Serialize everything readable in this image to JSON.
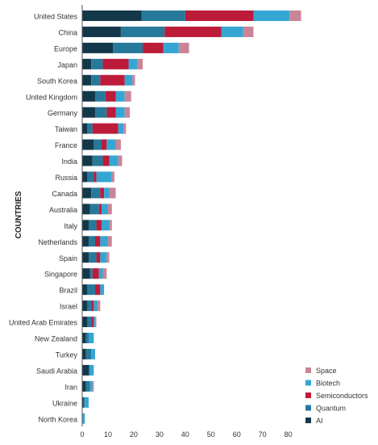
{
  "chart_data": {
    "type": "bar",
    "orientation": "horizontal",
    "stacked": true,
    "ylabel": "COUNTRIES",
    "xlabel": "",
    "xlim": [
      0,
      85
    ],
    "xticks": [
      0,
      10,
      20,
      30,
      40,
      50,
      60,
      70,
      80
    ],
    "grid": false,
    "legend_position": "bottom-right",
    "categories": [
      "United States",
      "China",
      "Europe",
      "Japan",
      "South Korea",
      "United Kingdom",
      "Germany",
      "Taiwan",
      "France",
      "India",
      "Russia",
      "Canada",
      "Australia",
      "Italy",
      "Netherlands",
      "Spain",
      "Singapore",
      "Brazil",
      "Israel",
      "United Arab Emirates",
      "New Zealand",
      "Turkey",
      "Saudi Arabia",
      "Iran",
      "Ukraine",
      "North Korea"
    ],
    "series": [
      {
        "name": "AI",
        "color": "#13384a",
        "values": [
          23,
          15,
          12,
          3.5,
          3.5,
          5,
          5,
          2,
          4.5,
          4,
          2,
          3.5,
          3,
          2.5,
          2.5,
          2.5,
          3,
          2,
          2,
          2,
          1.5,
          1.5,
          2.5,
          1.5,
          0.5,
          0
        ]
      },
      {
        "name": "Quantum",
        "color": "#27799a",
        "values": [
          17,
          17,
          11.5,
          4.5,
          3.5,
          4,
          4.5,
          2,
          3,
          4,
          2.5,
          3.5,
          3.5,
          3,
          2.5,
          3,
          1,
          3,
          1.5,
          1.5,
          1,
          2,
          0.5,
          1.5,
          0.5,
          0
        ]
      },
      {
        "name": "Semiconductors",
        "color": "#bd1b3a",
        "values": [
          26.5,
          22,
          8,
          10,
          9.5,
          4,
          3.5,
          10,
          2,
          2.5,
          1,
          1.5,
          1,
          2,
          2,
          1.5,
          2.5,
          2,
          1,
          1,
          0,
          0,
          0,
          0,
          0,
          0
        ]
      },
      {
        "name": "Biotech",
        "color": "#35a6d4",
        "values": [
          14,
          8.5,
          6,
          3.5,
          3,
          3.5,
          3.5,
          2,
          3.5,
          3.5,
          6,
          2,
          2.5,
          3,
          3,
          2.5,
          1.5,
          1.5,
          1.5,
          0.5,
          2,
          1.5,
          1.5,
          1,
          1.5,
          1
        ]
      },
      {
        "name": "Space",
        "color": "#c98595",
        "values": [
          4.5,
          4,
          4,
          2,
          1,
          2.5,
          2,
          1,
          2,
          1.5,
          1,
          2.5,
          1.5,
          1,
          1.5,
          1,
          1.5,
          0,
          1,
          0.5,
          0,
          0,
          0,
          0.5,
          0,
          0
        ]
      }
    ],
    "legend": [
      "Space",
      "Biotech",
      "Semiconductors",
      "Quantum",
      "AI"
    ]
  }
}
